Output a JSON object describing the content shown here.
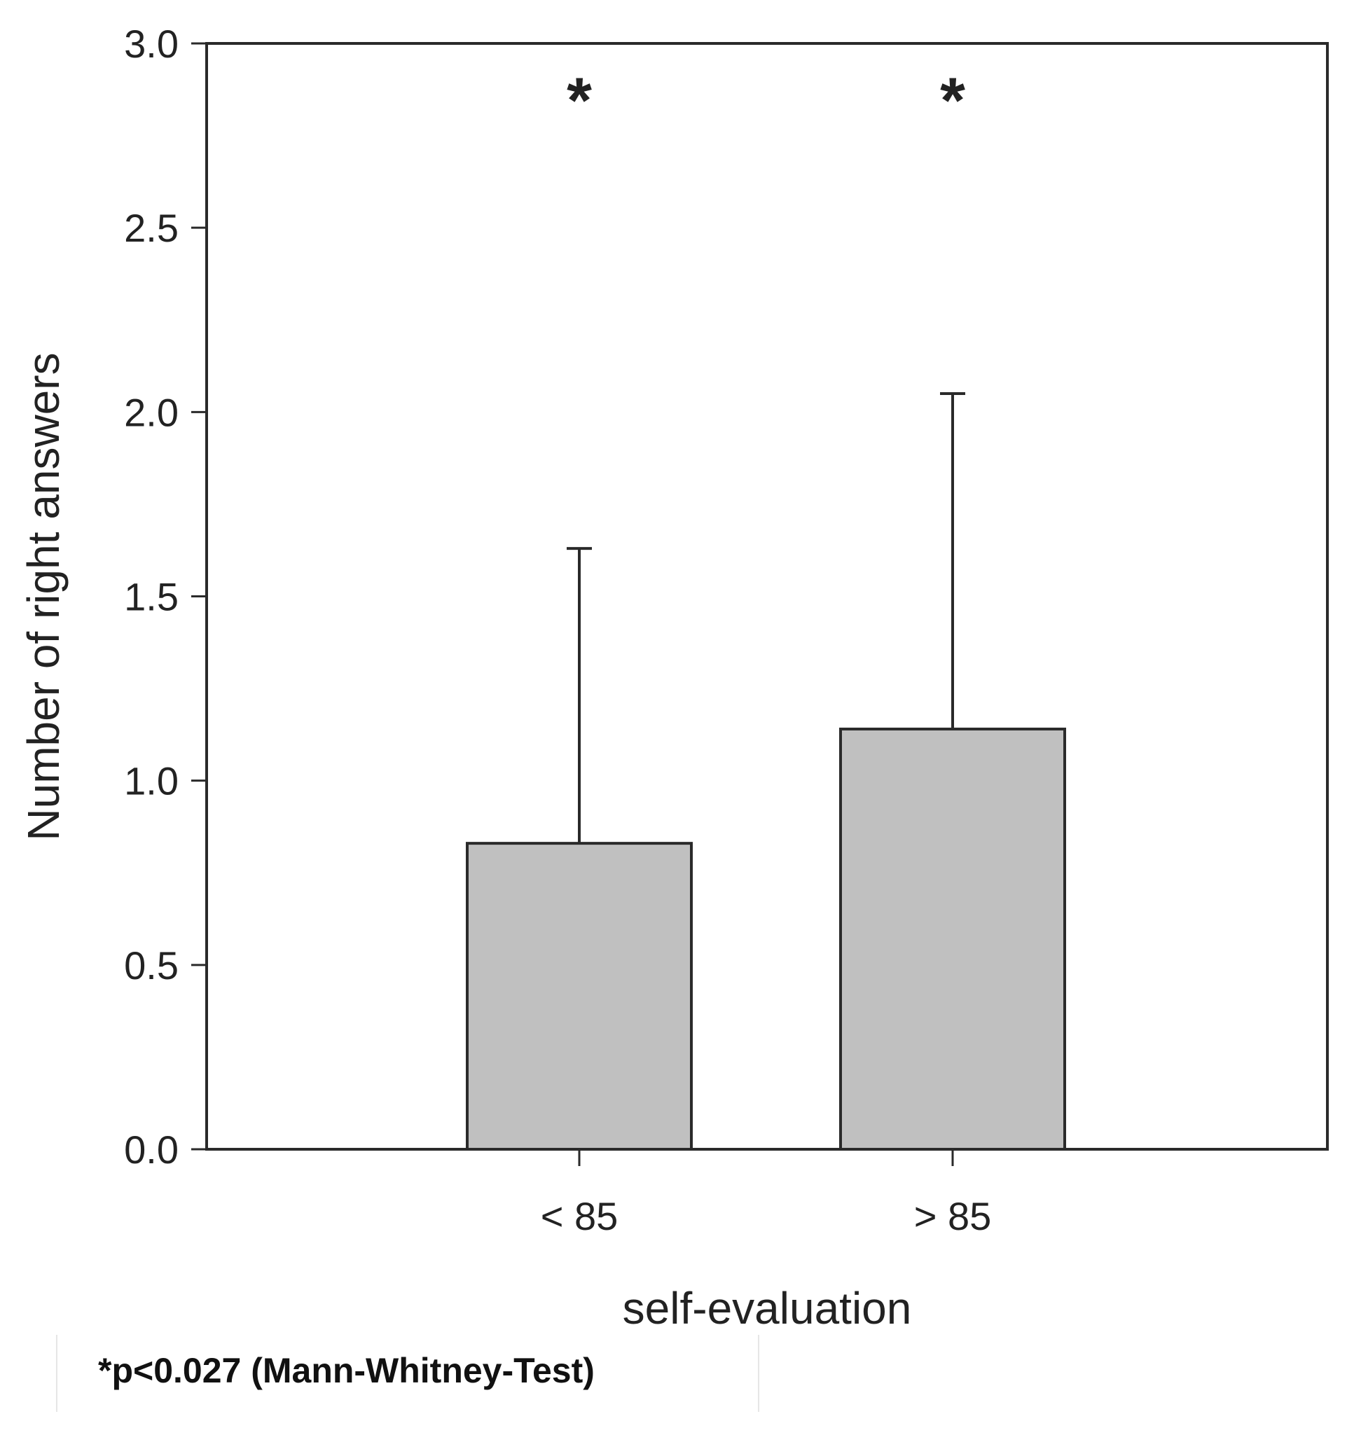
{
  "chart_data": {
    "type": "bar",
    "categories": [
      "< 85",
      "> 85"
    ],
    "values": [
      0.83,
      1.14
    ],
    "error_upper": [
      1.63,
      2.05
    ],
    "significance_marks": [
      "*",
      "*"
    ],
    "xlabel": "self-evaluation",
    "ylabel": "Number of right answers",
    "ylim": [
      0,
      3.0
    ],
    "yticks": [
      "0.0",
      "0.5",
      "1.0",
      "1.5",
      "2.0",
      "2.5",
      "3.0"
    ],
    "grid": false,
    "bar_color": "#c0c0c0",
    "edge_color": "#2a2a2a"
  },
  "footnote": "*p<0.027 (Mann-Whitney-Test)"
}
